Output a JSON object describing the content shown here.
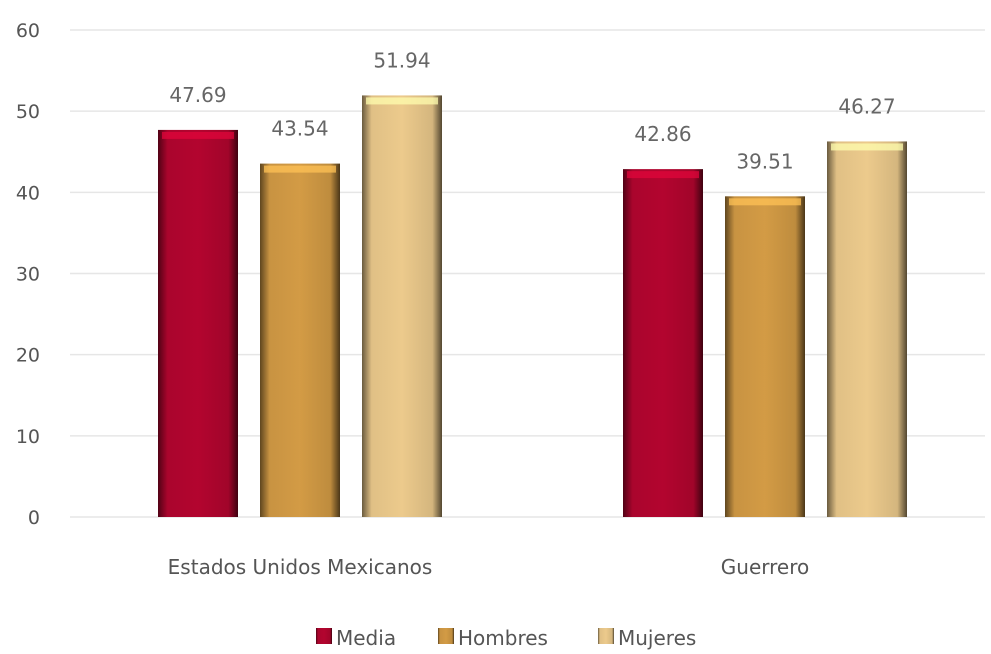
{
  "chart_data": {
    "type": "bar",
    "title": "",
    "xlabel": "",
    "ylabel": "",
    "ylim": [
      0,
      60
    ],
    "yticks": [
      0,
      10,
      20,
      30,
      40,
      50,
      60
    ],
    "grid": true,
    "legend_position": "bottom-center",
    "categories": [
      "Estados Unidos Mexicanos",
      "Guerrero"
    ],
    "series": [
      {
        "name": "Media",
        "values": [
          47.69,
          42.86
        ],
        "color": "#b3052f",
        "label_format": [
          "47.69",
          "42.86"
        ]
      },
      {
        "name": "Hombres",
        "values": [
          43.54,
          39.51
        ],
        "color": "#d39b45",
        "label_format": [
          "43.54",
          "39.51"
        ]
      },
      {
        "name": "Mujeres",
        "values": [
          51.94,
          46.27
        ],
        "color": "#ecca8c",
        "label_format": [
          "51.94",
          "46.27"
        ]
      }
    ]
  }
}
